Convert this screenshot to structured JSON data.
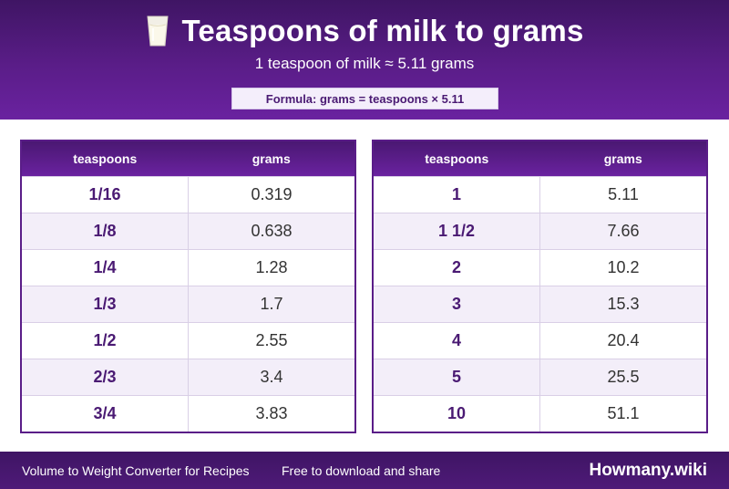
{
  "header": {
    "title": "Teaspoons of milk to grams",
    "icon": "milk-glass-icon",
    "subtitle": "1 teaspoon of milk ≈ 5.11 grams",
    "formula": "Formula: grams = teaspoons × 5.11"
  },
  "columns": {
    "teaspoons": "teaspoons",
    "grams": "grams"
  },
  "left_table": [
    {
      "tsp": "1/16",
      "grams": "0.319"
    },
    {
      "tsp": "1/8",
      "grams": "0.638"
    },
    {
      "tsp": "1/4",
      "grams": "1.28"
    },
    {
      "tsp": "1/3",
      "grams": "1.7"
    },
    {
      "tsp": "1/2",
      "grams": "2.55"
    },
    {
      "tsp": "2/3",
      "grams": "3.4"
    },
    {
      "tsp": "3/4",
      "grams": "3.83"
    }
  ],
  "right_table": [
    {
      "tsp": "1",
      "grams": "5.11"
    },
    {
      "tsp": "1 1/2",
      "grams": "7.66"
    },
    {
      "tsp": "2",
      "grams": "10.2"
    },
    {
      "tsp": "3",
      "grams": "15.3"
    },
    {
      "tsp": "4",
      "grams": "20.4"
    },
    {
      "tsp": "5",
      "grams": "25.5"
    },
    {
      "tsp": "10",
      "grams": "51.1"
    }
  ],
  "footer": {
    "left": "Volume to Weight Converter for Recipes",
    "middle": "Free to download and share",
    "brand": "Howmany.wiki"
  },
  "colors": {
    "primary": "#5a1d88",
    "accent_text": "#4a1a73",
    "row_alt": "#f3eef9"
  }
}
